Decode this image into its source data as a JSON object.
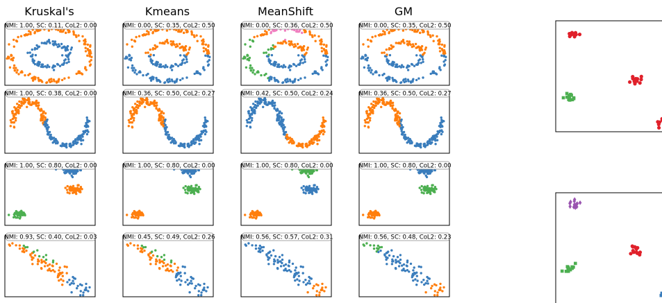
{
  "colors": {
    "blue": "#3a7dbc",
    "orange": "#ff7f0e",
    "green": "#4caf50",
    "pink": "#f080c0",
    "red": "#e0202a",
    "purple": "#9a55b0"
  },
  "chart_data": {
    "type": "scatter",
    "column_titles": [
      "Kruskal's",
      "Kmeans",
      "MeanShift",
      "GM"
    ],
    "rows": [
      {
        "dataset": "circles",
        "annotations": [
          "NMI: 1.00, SC: 0.11, CoL2: 0.00",
          "NMI: 0.00, SC: 0.35, CoL2: 0.50",
          "NMI: 0.00, SC: 0.36, CoL2: 0.50",
          "NMI: 0.00, SC: 0.35, CoL2: 0.50"
        ]
      },
      {
        "dataset": "moons",
        "annotations": [
          "NMI: 1.00, SC: 0.38, CoL2: 0.00",
          "NMI: 0.36, SC: 0.50, CoL2: 0.27",
          "NMI: 0.42, SC: 0.50, CoL2: 0.24",
          "NMI: 0.36, SC: 0.50, CoL2: 0.27"
        ]
      },
      {
        "dataset": "blobs",
        "annotations": [
          "NMI: 1.00, SC: 0.80, CoL2: 0.00",
          "NMI: 1.00, SC: 0.80, CoL2: 0.00",
          "NMI: 1.00, SC: 0.80, CoL2: 0.00",
          "NMI: 1.00, SC: 0.80, CoL2: 0.00"
        ]
      },
      {
        "dataset": "diagonal",
        "annotations": [
          "NMI: 0.93, SC: 0.40, CoL2: 0.03",
          "NMI: 0.45, SC: 0.49, CoL2: 0.26",
          "NMI: 0.56, SC: 0.57, CoL2: 0.31",
          "NMI: 0.56, SC: 0.48, CoL2: 0.23"
        ]
      }
    ],
    "right_panels": [
      {
        "clusters": [
          {
            "color": "red",
            "marker": "circle",
            "x": 0.15,
            "y": 0.12
          },
          {
            "color": "red",
            "marker": "circle",
            "x": 0.72,
            "y": 0.52
          },
          {
            "color": "green",
            "marker": "square",
            "x": 0.12,
            "y": 0.68
          },
          {
            "color": "red",
            "marker": "circle",
            "x": 0.97,
            "y": 0.92
          }
        ]
      },
      {
        "clusters": [
          {
            "color": "purple",
            "marker": "diamond",
            "x": 0.17,
            "y": 0.1
          },
          {
            "color": "red",
            "marker": "circle",
            "x": 0.72,
            "y": 0.52
          },
          {
            "color": "green",
            "marker": "square",
            "x": 0.12,
            "y": 0.68
          },
          {
            "color": "blue",
            "marker": "square",
            "x": 0.98,
            "y": 0.92
          }
        ]
      }
    ],
    "grid": false,
    "legend": "none"
  }
}
